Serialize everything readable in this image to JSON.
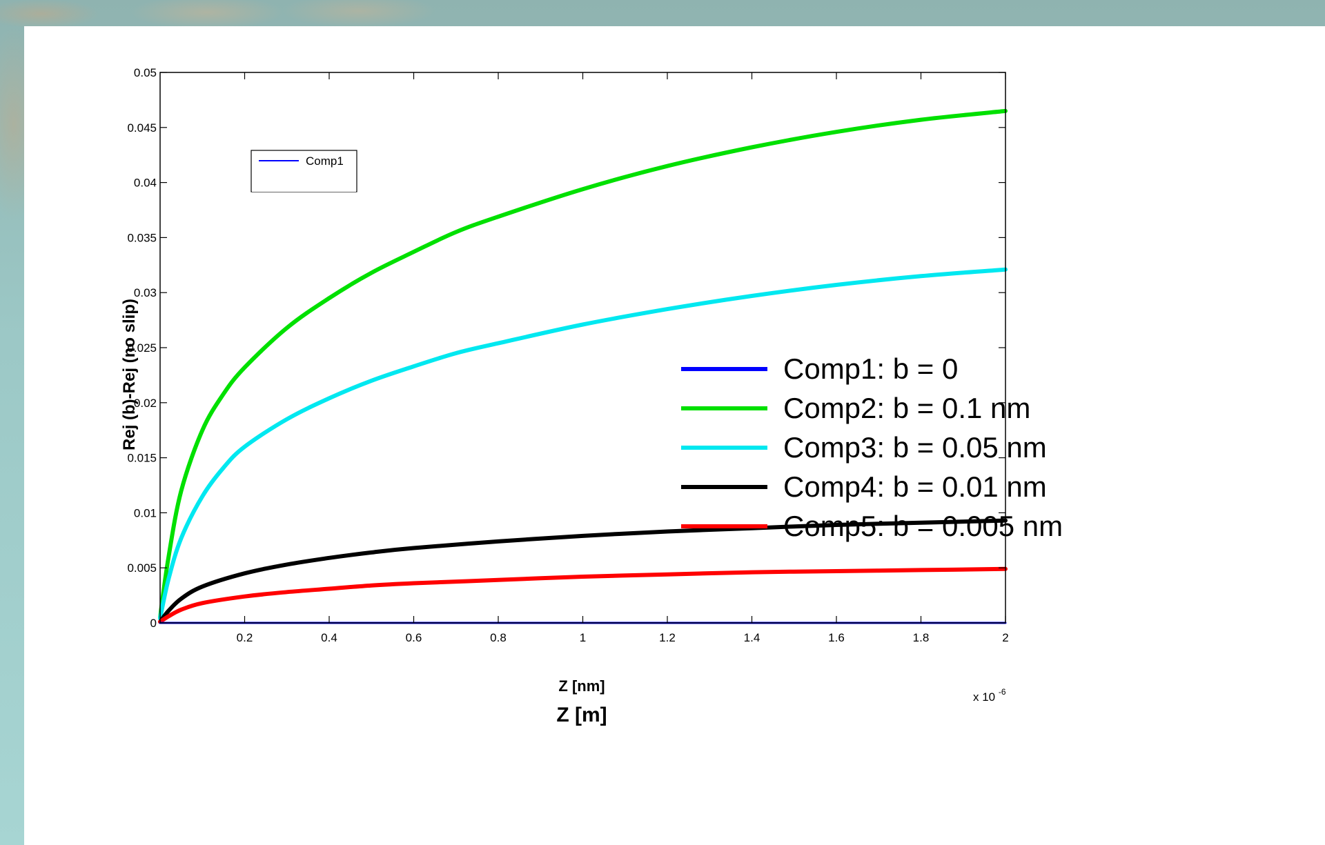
{
  "chart_data": {
    "type": "line",
    "xlabel": "Z [nm]",
    "xlabel_secondary": "Z [m]",
    "ylabel": "Rej (b)-Rej (no slip)",
    "x_exponent_base": "x 10",
    "x_exponent_power": "-6",
    "xlim": [
      0,
      2
    ],
    "ylim": [
      0,
      0.05
    ],
    "x_ticks": [
      0.2,
      0.4,
      0.6,
      0.8,
      1,
      1.2,
      1.4,
      1.6,
      1.8,
      2
    ],
    "x_tick_labels": [
      "0.2",
      "0.4",
      "0.6",
      "0.8",
      "1",
      "1.2",
      "1.4",
      "1.6",
      "1.8",
      "2"
    ],
    "y_ticks": [
      0,
      0.005,
      0.01,
      0.015,
      0.02,
      0.025,
      0.03,
      0.035,
      0.04,
      0.045,
      0.05
    ],
    "y_tick_labels": [
      "0",
      "0.005",
      "0.01",
      "0.015",
      "0.02",
      "0.025",
      "0.03",
      "0.035",
      "0.04",
      "0.045",
      "0.05"
    ],
    "grid": false,
    "legend_position": "center-right",
    "small_legend_text": "Comp1",
    "series": [
      {
        "name": "Comp1: b = 0",
        "color": "#0000ff",
        "x": [
          0,
          0.2,
          0.4,
          0.6,
          0.8,
          1.0,
          1.2,
          1.4,
          1.6,
          1.8,
          2.0
        ],
        "y": [
          0,
          0,
          0,
          0,
          0,
          0,
          0,
          0,
          0,
          0,
          0
        ]
      },
      {
        "name": "Comp2: b = 0.1 nm",
        "color": "#00e000",
        "x": [
          0,
          0.02,
          0.05,
          0.1,
          0.15,
          0.2,
          0.3,
          0.4,
          0.5,
          0.6,
          0.7,
          0.8,
          1.0,
          1.2,
          1.4,
          1.6,
          1.8,
          2.0
        ],
        "y": [
          0.0005,
          0.006,
          0.012,
          0.0175,
          0.0208,
          0.0232,
          0.0268,
          0.0295,
          0.0318,
          0.0337,
          0.0355,
          0.0369,
          0.0394,
          0.0415,
          0.0432,
          0.0446,
          0.0457,
          0.0465
        ]
      },
      {
        "name": "Comp3: b = 0.05 nm",
        "color": "#00e8f0",
        "x": [
          0,
          0.02,
          0.05,
          0.1,
          0.15,
          0.2,
          0.3,
          0.4,
          0.5,
          0.6,
          0.7,
          0.8,
          1.0,
          1.2,
          1.4,
          1.6,
          1.8,
          2.0
        ],
        "y": [
          0.0004,
          0.004,
          0.0077,
          0.0115,
          0.0141,
          0.016,
          0.0185,
          0.0204,
          0.022,
          0.0233,
          0.0245,
          0.0254,
          0.0271,
          0.0285,
          0.0297,
          0.0307,
          0.0315,
          0.0321
        ]
      },
      {
        "name": "Comp4: b = 0.01 nm",
        "color": "#000000",
        "x": [
          0,
          0.02,
          0.05,
          0.1,
          0.2,
          0.3,
          0.4,
          0.5,
          0.6,
          0.8,
          1.0,
          1.2,
          1.4,
          1.6,
          1.8,
          2.0
        ],
        "y": [
          0.0001,
          0.0011,
          0.0022,
          0.0033,
          0.0045,
          0.0053,
          0.0059,
          0.0064,
          0.0068,
          0.0074,
          0.0079,
          0.0083,
          0.0086,
          0.0089,
          0.0091,
          0.0093
        ]
      },
      {
        "name": "Comp5: b = 0.005 nm",
        "color": "#ff0000",
        "x": [
          0,
          0.02,
          0.05,
          0.1,
          0.2,
          0.3,
          0.4,
          0.5,
          0.6,
          0.8,
          1.0,
          1.2,
          1.4,
          1.6,
          1.8,
          2.0
        ],
        "y": [
          0.0001,
          0.0006,
          0.0012,
          0.0018,
          0.0024,
          0.0028,
          0.0031,
          0.0034,
          0.0036,
          0.0039,
          0.0042,
          0.0044,
          0.0046,
          0.0047,
          0.0048,
          0.0049
        ]
      }
    ]
  }
}
